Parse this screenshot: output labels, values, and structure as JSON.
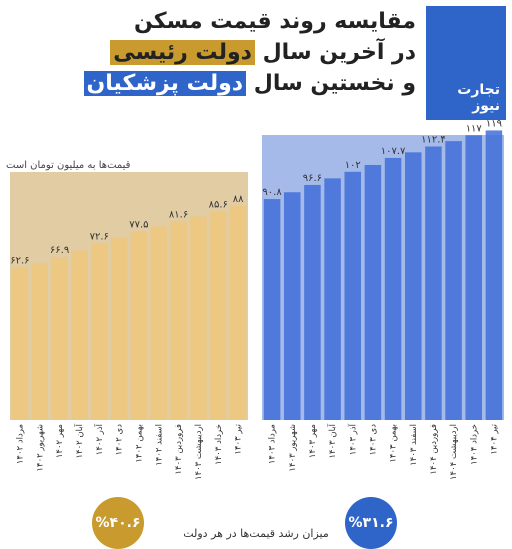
{
  "title": {
    "line1": "مقایسه روند قیمت مسکن",
    "line2_prefix": "در آخرین سال ",
    "line2_highlight": "دولت رئیسی",
    "line3_prefix": "و نخستین سال ",
    "line3_highlight": "دولت پزشکیان"
  },
  "logo": {
    "text": "تجارت نیوز"
  },
  "unit_note": "قیمت‌ها به میلیون تومان است",
  "footer_label": "میزان رشد قیمت‌ها در هر دولت",
  "colors": {
    "left_panel": "#c9a258",
    "left_bar": "#efc77c",
    "right_panel": "#5b82d6",
    "right_bar": "#3f6fd8",
    "accent_gold": "#c99a2e",
    "accent_blue": "#2f64c8"
  },
  "chart_data": [
    {
      "type": "bar",
      "categories": [
        "مرداد ۱۴۰۲",
        "شهریور ۱۴۰۲",
        "مهر ۱۴۰۲",
        "آبان ۱۴۰۲",
        "آذر ۱۴۰۲",
        "دی ۱۴۰۲",
        "بهمن ۱۴۰۲",
        "اسفند ۱۴۰۲",
        "فروردین ۱۴۰۳",
        "اردیبهشت ۱۴۰۳",
        "خرداد ۱۴۰۳",
        "تیر ۱۴۰۳"
      ],
      "values": [
        62.6,
        64.4,
        66.9,
        69.6,
        72.6,
        75.0,
        77.5,
        79.5,
        81.6,
        83.6,
        85.6,
        88
      ],
      "labels": [
        "۶۲.۶",
        "",
        "۶۶.۹",
        "",
        "۷۲.۶",
        "",
        "۷۷.۵",
        "",
        "۸۱.۶",
        "",
        "۸۵.۶",
        "۸۸"
      ],
      "growth_badge": "%۴۰.۶"
    },
    {
      "type": "bar",
      "categories": [
        "مرداد ۱۴۰۳",
        "شهریور ۱۴۰۳",
        "مهر ۱۴۰۳",
        "آبان ۱۴۰۳",
        "آذر ۱۴۰۳",
        "دی ۱۴۰۳",
        "بهمن ۱۴۰۳",
        "اسفند ۱۴۰۳",
        "فروردین ۱۴۰۴",
        "اردیبهشت ۱۴۰۴",
        "خرداد ۱۴۰۴",
        "تیر ۱۴۰۴"
      ],
      "values": [
        90.8,
        93.6,
        96.6,
        99.3,
        102,
        104.8,
        107.7,
        110,
        112.4,
        114.6,
        117,
        119
      ],
      "labels": [
        "۹۰.۸",
        "",
        "۹۶.۶",
        "",
        "۱۰۲",
        "",
        "۱۰۷.۷",
        "",
        "۱۱۲.۴",
        "",
        "۱۱۷",
        "۱۱۹"
      ],
      "growth_badge": "%۳۱.۶"
    }
  ]
}
